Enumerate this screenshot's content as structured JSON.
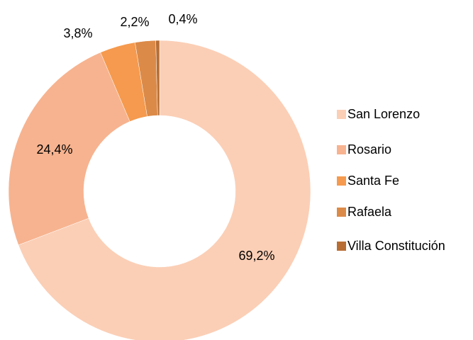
{
  "chart_data": {
    "type": "donut",
    "categories": [
      "San Lorenzo",
      "Rosario",
      "Santa Fe",
      "Rafaela",
      "Villa Constitución"
    ],
    "values": [
      69.2,
      24.4,
      3.8,
      2.2,
      0.4
    ],
    "value_labels": [
      "69,2%",
      "24,4%",
      "3,8%",
      "2,2%",
      "0,4%"
    ],
    "colors": [
      "#fbcfb6",
      "#f7b38f",
      "#f59a4e",
      "#dc8a48",
      "#b86e33"
    ],
    "legend": "right"
  }
}
